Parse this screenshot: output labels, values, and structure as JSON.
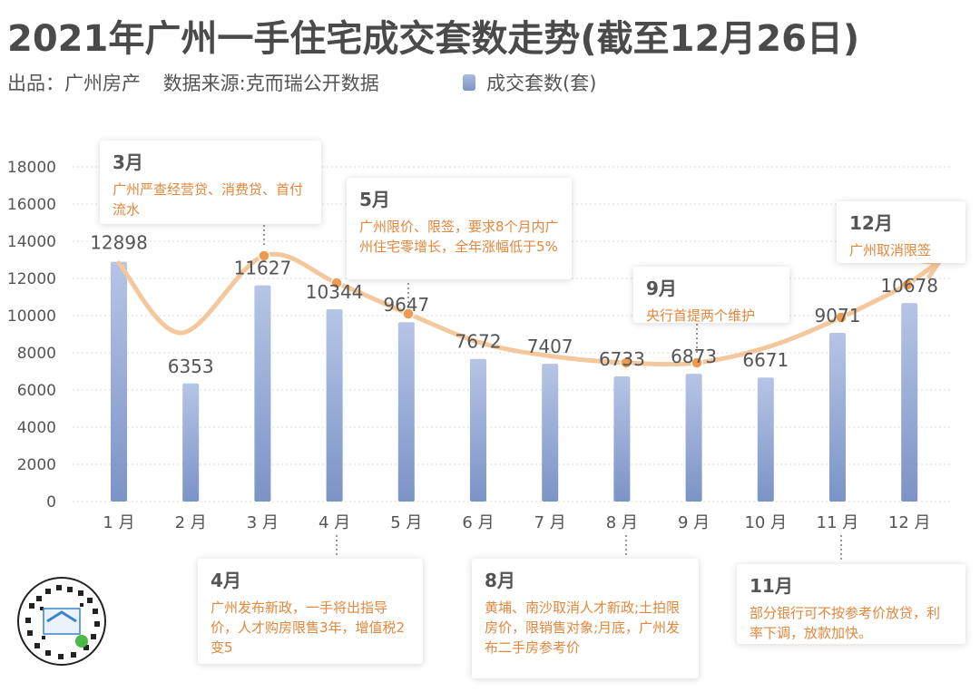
{
  "header": {
    "title": "2021年广州一手住宅成交套数走势(截至12月26日)",
    "publisher": "出品：广州房产",
    "source": "数据来源:克而瑞公开数据"
  },
  "colors": {
    "bar_top": "#a9bbdf",
    "bar_bottom": "#7d95c6",
    "trend": "#f1b57d",
    "dot": "#ef9a4e",
    "accent_text": "#e2873c"
  },
  "chart_data": {
    "type": "bar",
    "title": "2021年广州一手住宅成交套数走势(截至12月26日)",
    "categories": [
      "1 月",
      "2 月",
      "3 月",
      "4 月",
      "5 月",
      "6 月",
      "7 月",
      "8 月",
      "9 月",
      "10 月",
      "11 月",
      "12 月"
    ],
    "series": [
      {
        "name": "成交套数(套)",
        "values": [
          12898,
          6353,
          11627,
          10344,
          9647,
          7672,
          7407,
          6733,
          6873,
          6671,
          9071,
          10678
        ]
      }
    ],
    "ylim": [
      0,
      18000
    ],
    "yticks": [
      0,
      2000,
      4000,
      6000,
      8000,
      10000,
      12000,
      14000,
      16000,
      18000
    ],
    "legend": "top",
    "trend_line": true
  },
  "annotations": [
    {
      "month": "3月",
      "text": "广州严查经营贷、消费贷、首付流水"
    },
    {
      "month": "4月",
      "text": "广州发布新政，一手将出指导价，人才购房限售3年，增值税2变5"
    },
    {
      "month": "5月",
      "text": "广州限价、限签，要求8个月内广州住宅零增长，全年涨幅低于5%"
    },
    {
      "month": "8月",
      "text": "黄埔、南沙取消人才新政;土拍限房价，限销售对象;月底，广州发布二手房参考价"
    },
    {
      "month": "9月",
      "text": "央行首提两个维护"
    },
    {
      "month": "11月",
      "text": "部分银行可不按参考价放贷，利率下调，放款加快。"
    },
    {
      "month": "12月",
      "text": "广州取消限签"
    }
  ]
}
